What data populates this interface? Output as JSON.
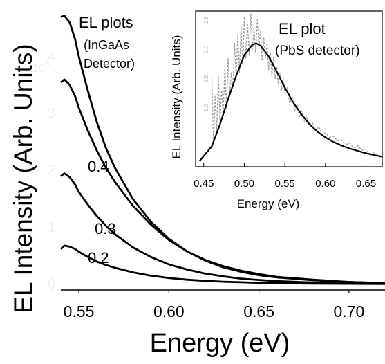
{
  "chart_data": [
    {
      "type": "line",
      "xlabel": "Energy (eV)",
      "ylabel": "EL Intensity (Arb. Units)",
      "xlim": [
        0.54,
        0.72
      ],
      "ylim": [
        -0.1,
        4.9
      ],
      "x_ticks": [
        {
          "value": 0.55,
          "label": "0.55"
        },
        {
          "value": 0.6,
          "label": "0.60"
        },
        {
          "value": 0.65,
          "label": "0.65"
        },
        {
          "value": 0.7,
          "label": "0.70"
        }
      ],
      "y_ticks": [
        {
          "value": 0,
          "label": "0"
        },
        {
          "value": 1,
          "label": "1"
        },
        {
          "value": 2,
          "label": "2"
        },
        {
          "value": 3,
          "label": "3"
        },
        {
          "value": 4,
          "label": "4"
        }
      ],
      "y_multiplier": "x10",
      "y_multiplier_exp": "6",
      "annotation_lines": [
        "EL plots",
        "(InGaAs",
        "Detector)"
      ],
      "series": [
        {
          "name": "",
          "x": [
            0.54,
            0.542,
            0.545,
            0.548,
            0.55,
            0.555,
            0.56,
            0.565,
            0.57,
            0.58,
            0.59,
            0.6,
            0.61,
            0.62,
            0.63,
            0.64,
            0.65,
            0.66,
            0.68,
            0.7,
            0.72
          ],
          "y": [
            4.7,
            4.72,
            4.6,
            4.3,
            4.0,
            3.4,
            2.85,
            2.4,
            2.05,
            1.5,
            1.1,
            0.8,
            0.58,
            0.42,
            0.3,
            0.22,
            0.16,
            0.12,
            0.07,
            0.04,
            0.02
          ]
        },
        {
          "name": "",
          "x": [
            0.54,
            0.542,
            0.545,
            0.548,
            0.55,
            0.555,
            0.56,
            0.565,
            0.57,
            0.58,
            0.59,
            0.6,
            0.61,
            0.62,
            0.63,
            0.64,
            0.65,
            0.66,
            0.68,
            0.7,
            0.72
          ],
          "y": [
            3.55,
            3.6,
            3.5,
            3.3,
            3.1,
            2.7,
            2.35,
            2.05,
            1.8,
            1.38,
            1.05,
            0.78,
            0.58,
            0.43,
            0.32,
            0.24,
            0.18,
            0.13,
            0.08,
            0.04,
            0.02
          ]
        },
        {
          "name": "",
          "x": [
            0.54,
            0.542,
            0.545,
            0.548,
            0.55,
            0.555,
            0.56,
            0.565,
            0.57,
            0.58,
            0.59,
            0.6,
            0.61,
            0.62,
            0.63,
            0.64,
            0.65,
            0.66,
            0.68,
            0.7,
            0.72
          ],
          "y": [
            1.9,
            1.95,
            1.88,
            1.75,
            1.62,
            1.4,
            1.2,
            1.03,
            0.88,
            0.65,
            0.48,
            0.35,
            0.26,
            0.19,
            0.14,
            0.1,
            0.075,
            0.055,
            0.03,
            0.015,
            0.01
          ]
        },
        {
          "name": "",
          "x": [
            0.54,
            0.542,
            0.545,
            0.548,
            0.55,
            0.555,
            0.56,
            0.565,
            0.57,
            0.58,
            0.59,
            0.6,
            0.61,
            0.62,
            0.63,
            0.64,
            0.65,
            0.66,
            0.68,
            0.7,
            0.72
          ],
          "y": [
            0.62,
            0.68,
            0.66,
            0.62,
            0.57,
            0.48,
            0.4,
            0.34,
            0.29,
            0.21,
            0.15,
            0.11,
            0.08,
            0.06,
            0.045,
            0.035,
            0.025,
            0.02,
            0.012,
            0.008,
            0.005
          ]
        }
      ],
      "data_labels": [
        {
          "text": "0.4",
          "x": 0.546,
          "y": 2.4
        },
        {
          "text": "0.3",
          "x": 0.552,
          "y": 1.15
        },
        {
          "text": "0.2",
          "x": 0.55,
          "y": 0.52
        }
      ]
    },
    {
      "type": "line",
      "xlabel": "Energy (eV)",
      "ylabel": "EL Intensity (Arb. Units)",
      "xlim": [
        0.44,
        0.67
      ],
      "ylim": [
        0,
        2.65
      ],
      "x_ticks": [
        {
          "value": 0.45,
          "label": "0.45"
        },
        {
          "value": 0.5,
          "label": "0.50"
        },
        {
          "value": 0.55,
          "label": "0.55"
        },
        {
          "value": 0.6,
          "label": "0.60"
        },
        {
          "value": 0.65,
          "label": "0.65"
        }
      ],
      "y_ticks": [
        {
          "value": 1.0,
          "label": "1.0"
        },
        {
          "value": 1.5,
          "label": "1.5"
        },
        {
          "value": 2.0,
          "label": "2.0"
        },
        {
          "value": 2.5,
          "label": "2.5"
        }
      ],
      "annotation_lines": [
        "EL plot",
        "(PbS detector)"
      ],
      "series": [
        {
          "name": "",
          "x": [
            0.445,
            0.46,
            0.47,
            0.48,
            0.49,
            0.5,
            0.51,
            0.515,
            0.52,
            0.53,
            0.54,
            0.55,
            0.56,
            0.57,
            0.58,
            0.59,
            0.6,
            0.61,
            0.62,
            0.63,
            0.64,
            0.65,
            0.66,
            0.67
          ],
          "y": [
            0.1,
            0.35,
            0.72,
            1.15,
            1.55,
            1.9,
            2.08,
            2.1,
            2.06,
            1.88,
            1.62,
            1.35,
            1.1,
            0.9,
            0.73,
            0.6,
            0.5,
            0.42,
            0.36,
            0.31,
            0.27,
            0.23,
            0.2,
            0.17
          ]
        },
        {
          "name": "",
          "color": "#9a9a9a",
          "x": [
            0.46,
            0.462,
            0.464,
            0.466,
            0.468,
            0.47,
            0.472,
            0.474,
            0.476,
            0.478,
            0.48,
            0.482,
            0.484,
            0.486,
            0.488,
            0.49,
            0.492,
            0.494,
            0.496,
            0.498,
            0.5,
            0.502,
            0.504,
            0.506,
            0.508,
            0.51,
            0.512,
            0.514,
            0.516,
            0.518,
            0.52,
            0.522,
            0.524,
            0.526,
            0.528,
            0.53,
            0.532,
            0.534,
            0.536,
            0.538,
            0.54,
            0.542,
            0.544,
            0.546,
            0.548,
            0.55,
            0.553,
            0.556,
            0.559,
            0.562,
            0.565,
            0.568,
            0.571,
            0.574,
            0.577,
            0.58,
            0.584,
            0.588,
            0.592,
            0.596,
            0.6,
            0.605,
            0.61,
            0.615,
            0.62,
            0.625,
            0.63,
            0.635,
            0.64,
            0.645,
            0.65,
            0.655,
            0.66
          ],
          "y": [
            1.5,
            0.4,
            1.2,
            0.6,
            1.55,
            0.8,
            1.3,
            0.9,
            1.7,
            1.0,
            1.85,
            1.2,
            1.6,
            1.35,
            2.1,
            1.5,
            2.25,
            1.6,
            2.4,
            1.75,
            2.55,
            1.85,
            2.45,
            1.9,
            2.6,
            2.0,
            2.35,
            1.95,
            2.5,
            2.05,
            2.3,
            1.8,
            2.2,
            1.85,
            2.1,
            1.65,
            1.95,
            1.55,
            1.85,
            1.5,
            1.7,
            1.4,
            1.6,
            1.3,
            1.5,
            1.25,
            1.35,
            1.05,
            1.2,
            0.95,
            1.05,
            0.85,
            0.95,
            0.78,
            0.85,
            0.72,
            0.75,
            0.62,
            0.68,
            0.55,
            0.58,
            0.5,
            0.52,
            0.44,
            0.45,
            0.38,
            0.4,
            0.32,
            0.36,
            0.28,
            0.3,
            0.22,
            0.24
          ]
        }
      ]
    }
  ]
}
